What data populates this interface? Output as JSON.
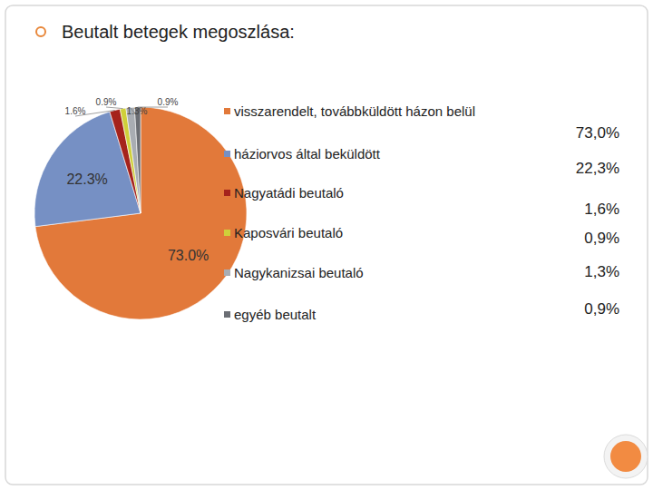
{
  "chart_data": {
    "type": "pie",
    "title": "Beutalt betegek megoszlása:",
    "categories": [
      "visszarendelt, továbbküldött házon belül",
      "háziorvos által beküldött",
      "Nagyatádi beutaló",
      "Kaposvári beutaló",
      "Nagykanizsai beutaló",
      "egyéb beutalt"
    ],
    "values": [
      73.0,
      22.3,
      1.6,
      0.9,
      1.3,
      0.9
    ],
    "value_labels": [
      "73.0%",
      "22.3%",
      "1.6%",
      "0.9%",
      "1.3%",
      "0.9%"
    ],
    "colors": [
      "#e2793a",
      "#7690c4",
      "#a5231c",
      "#cfcf3a",
      "#a9adb3",
      "#6b6e74"
    ],
    "data_labels": true,
    "legend": "right"
  },
  "legend_table": {
    "values": [
      "73,0%",
      "22,3%",
      "1,6%",
      "0,9%",
      "1,3%",
      "0,9%"
    ]
  }
}
